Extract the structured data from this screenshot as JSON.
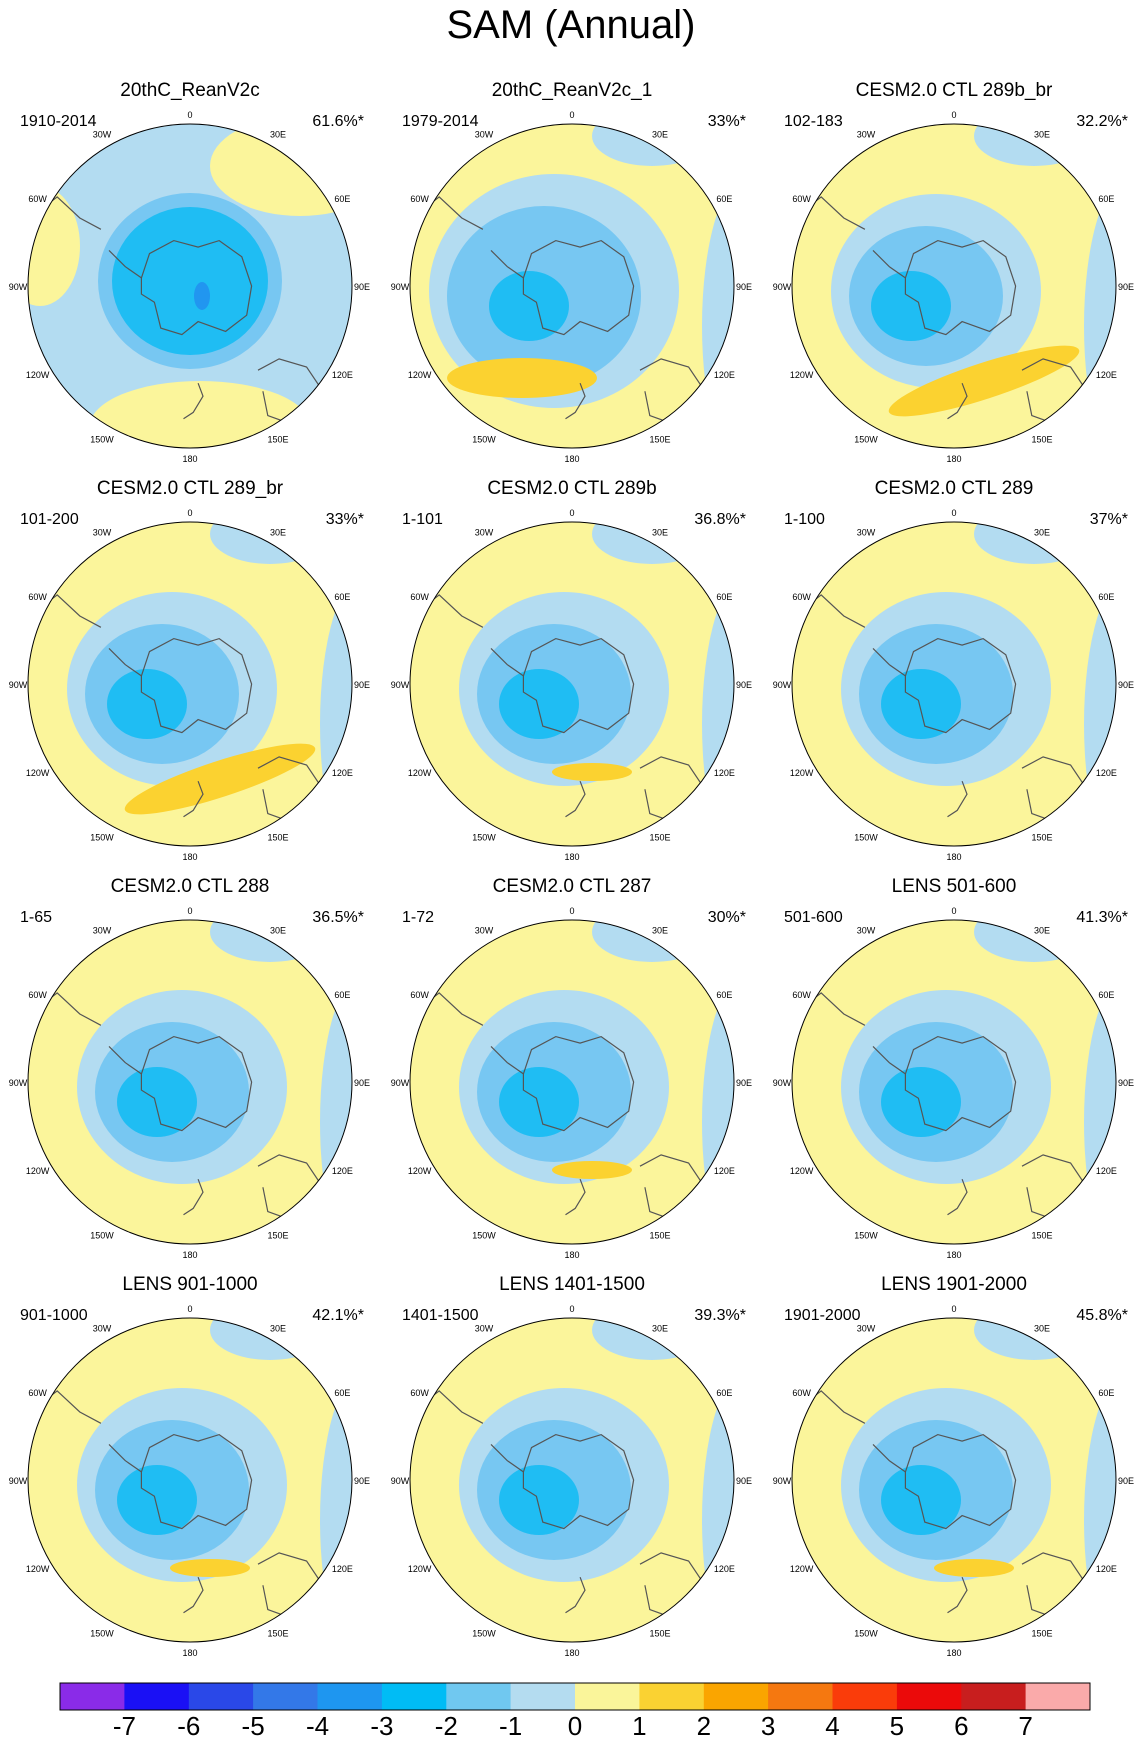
{
  "title": "SAM (Annual)",
  "lon_labels": [
    "0",
    "30E",
    "60E",
    "90E",
    "120E",
    "150E",
    "180",
    "150W",
    "120W",
    "90W",
    "60W",
    "30W"
  ],
  "panels": [
    {
      "title": "20thC_ReanV2c",
      "years": "1910-2014",
      "pct": "61.6%*",
      "style": "rean"
    },
    {
      "title": "20thC_ReanV2c_1",
      "years": "1979-2014",
      "pct": "33%*",
      "style": "rean1"
    },
    {
      "title": "CESM2.0 CTL 289b_br",
      "years": "102-183",
      "pct": "32.2%*",
      "style": "model_band"
    },
    {
      "title": "CESM2.0 CTL 289_br",
      "years": "101-200",
      "pct": "33%*",
      "style": "model_band"
    },
    {
      "title": "CESM2.0 CTL 289b",
      "years": "1-101",
      "pct": "36.8%*",
      "style": "model_small"
    },
    {
      "title": "CESM2.0 CTL 289",
      "years": "1-100",
      "pct": "37%*",
      "style": "model_plain"
    },
    {
      "title": "CESM2.0 CTL 288",
      "years": "1-65",
      "pct": "36.5%*",
      "style": "model_plain"
    },
    {
      "title": "CESM2.0 CTL 287",
      "years": "1-72",
      "pct": "30%*",
      "style": "model_small"
    },
    {
      "title": "LENS 501-600",
      "years": "501-600",
      "pct": "41.3%*",
      "style": "model_plain"
    },
    {
      "title": "LENS 901-1000",
      "years": "901-1000",
      "pct": "42.1%*",
      "style": "model_small"
    },
    {
      "title": "LENS 1401-1500",
      "years": "1401-1500",
      "pct": "39.3%*",
      "style": "model_plain"
    },
    {
      "title": "LENS 1901-2000",
      "years": "1901-2000",
      "pct": "45.8%*",
      "style": "model_small"
    }
  ],
  "colorbar": {
    "colors": [
      "#8a2be8",
      "#1a10f5",
      "#2a48e8",
      "#3378e8",
      "#1e96f0",
      "#00bcf5",
      "#70c8f0",
      "#b4dcf0",
      "#faf59a",
      "#fad232",
      "#faa500",
      "#f57810",
      "#fa3c0a",
      "#eb0a0a",
      "#c81e1e",
      "#faaaaa"
    ],
    "labels": [
      "-7",
      "-6",
      "-5",
      "-4",
      "-3",
      "-2",
      "-1",
      "0",
      "1",
      "2",
      "3",
      "4",
      "5",
      "6",
      "7"
    ]
  },
  "palette": {
    "yellow": "#fbf59b",
    "pale_blue": "#b3dcf1",
    "light_blue": "#77c7f2",
    "mid_blue": "#1fbdf3",
    "deep_blue": "#2196f0",
    "orange": "#fbd230",
    "coast": "#555555"
  }
}
